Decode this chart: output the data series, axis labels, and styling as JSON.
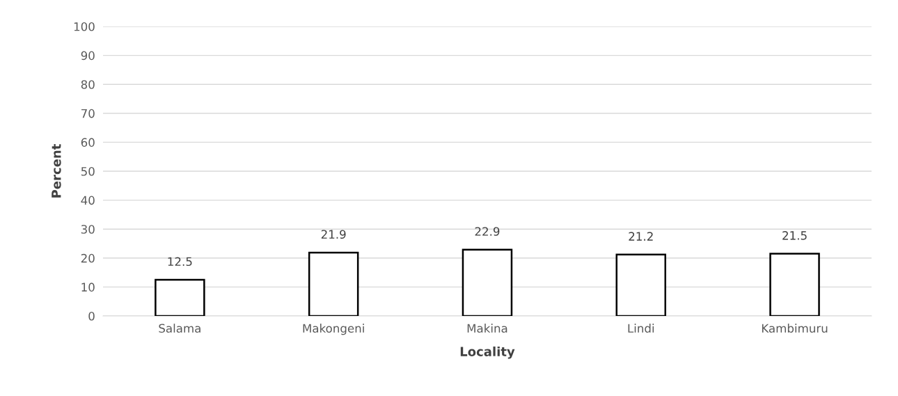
{
  "chart_data": {
    "type": "bar",
    "xlabel": "Locality",
    "ylabel": "Percent",
    "categories": [
      "Salama",
      "Makongeni",
      "Makina",
      "Lindi",
      "Kambimuru"
    ],
    "values": [
      12.5,
      21.9,
      22.9,
      21.2,
      21.5
    ],
    "color": "#ffffff",
    "ylim": [
      0,
      100
    ],
    "yticks": [
      0,
      10,
      20,
      30,
      40,
      50,
      60,
      70,
      80,
      90,
      100
    ],
    "grid": "y",
    "data_labels": true
  }
}
